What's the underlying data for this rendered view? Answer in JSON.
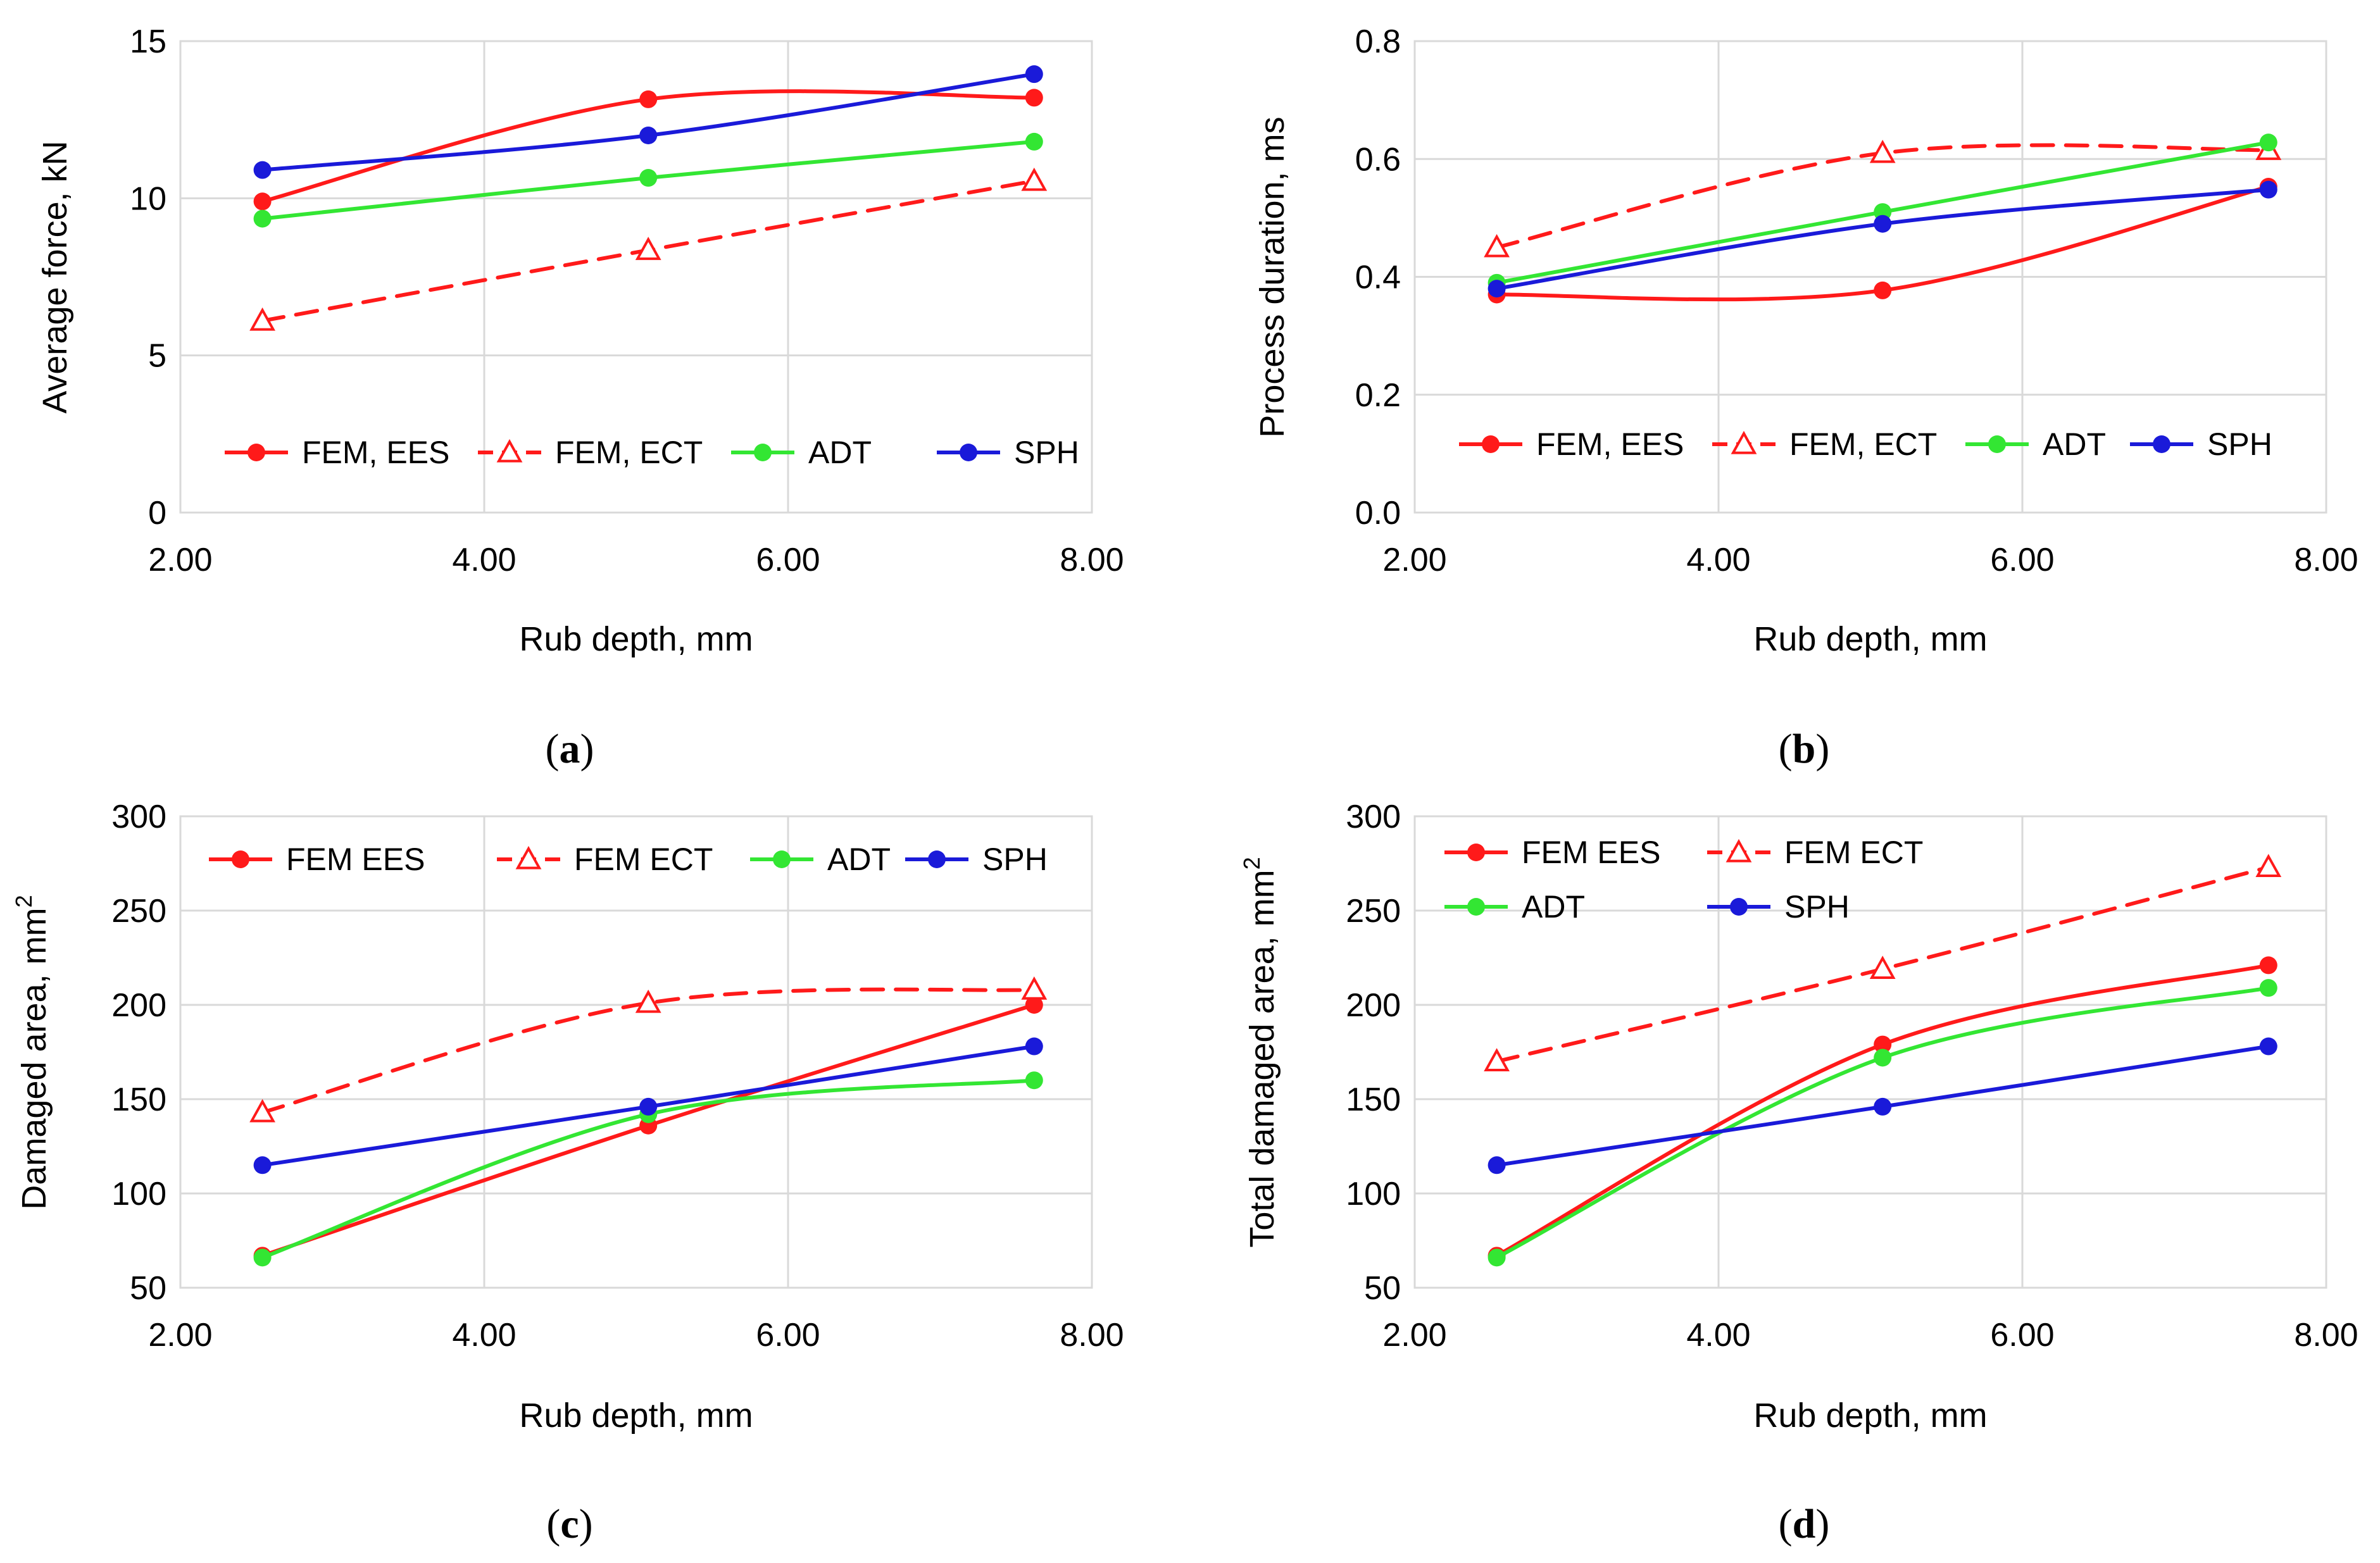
{
  "chart_data": [
    {
      "type": "line",
      "panel_label": "a",
      "xlabel": "Rub depth, mm",
      "ylabel": "Average force, kN",
      "xlim": [
        2.0,
        8.0
      ],
      "ylim": [
        0,
        15
      ],
      "x_ticks": [
        "2.00",
        "4.00",
        "6.00",
        "8.00"
      ],
      "y_ticks": [
        "0",
        "5",
        "10",
        "15"
      ],
      "grid": true,
      "legend_placement": "bottom",
      "x": [
        2.54,
        5.08,
        7.62
      ],
      "series": [
        {
          "name": "FEM, EES",
          "values": [
            9.9,
            13.15,
            13.2
          ],
          "color": "#ff1a1a",
          "marker": "circle",
          "dash": "solid"
        },
        {
          "name": "FEM, ECT",
          "values": [
            6.1,
            8.35,
            10.55
          ],
          "color": "#ff1a1a",
          "marker": "triangle",
          "dash": "dashed"
        },
        {
          "name": "ADT",
          "values": [
            9.35,
            10.65,
            11.8
          ],
          "color": "#33e633",
          "marker": "circle",
          "dash": "solid"
        },
        {
          "name": "SPH",
          "values": [
            10.9,
            12.0,
            13.95
          ],
          "color": "#1a1ad9",
          "marker": "circle",
          "dash": "solid"
        }
      ]
    },
    {
      "type": "line",
      "panel_label": "b",
      "xlabel": "Rub depth, mm",
      "ylabel": "Process duration, ms",
      "xlim": [
        2.0,
        8.0
      ],
      "ylim": [
        0,
        0.8
      ],
      "x_ticks": [
        "2.00",
        "4.00",
        "6.00",
        "8.00"
      ],
      "y_ticks": [
        "0.0",
        "0.2",
        "0.4",
        "0.6",
        "0.8"
      ],
      "grid": true,
      "legend_placement": "bottom",
      "x": [
        2.54,
        5.08,
        7.62
      ],
      "series": [
        {
          "name": "FEM, EES",
          "values": [
            0.37,
            0.377,
            0.553
          ],
          "color": "#ff1a1a",
          "marker": "circle",
          "dash": "solid"
        },
        {
          "name": "FEM, ECT",
          "values": [
            0.45,
            0.61,
            0.615
          ],
          "color": "#ff1a1a",
          "marker": "triangle",
          "dash": "dashed"
        },
        {
          "name": "ADT",
          "values": [
            0.39,
            0.51,
            0.628
          ],
          "color": "#33e633",
          "marker": "circle",
          "dash": "solid"
        },
        {
          "name": "SPH",
          "values": [
            0.38,
            0.49,
            0.548
          ],
          "color": "#1a1ad9",
          "marker": "circle",
          "dash": "solid"
        }
      ]
    },
    {
      "type": "line",
      "panel_label": "c",
      "xlabel": "Rub depth, mm",
      "ylabel": "Damaged area, mm",
      "ylabel_superscript": "2",
      "xlim": [
        2.0,
        8.0
      ],
      "ylim": [
        50,
        300
      ],
      "x_ticks": [
        "2.00",
        "4.00",
        "6.00",
        "8.00"
      ],
      "y_ticks": [
        "50",
        "100",
        "150",
        "200",
        "250",
        "300"
      ],
      "grid": true,
      "legend_placement": "top",
      "x": [
        2.54,
        5.08,
        7.62
      ],
      "series": [
        {
          "name": "FEM EES",
          "values": [
            67,
            136,
            200
          ],
          "color": "#ff1a1a",
          "marker": "circle",
          "dash": "solid"
        },
        {
          "name": "FEM ECT",
          "values": [
            143,
            201,
            208
          ],
          "color": "#ff1a1a",
          "marker": "triangle",
          "dash": "dashed"
        },
        {
          "name": "ADT",
          "values": [
            66,
            142,
            160
          ],
          "color": "#33e633",
          "marker": "circle",
          "dash": "solid"
        },
        {
          "name": "SPH",
          "values": [
            115,
            146,
            178
          ],
          "color": "#1a1ad9",
          "marker": "circle",
          "dash": "solid"
        }
      ]
    },
    {
      "type": "line",
      "panel_label": "d",
      "xlabel": "Rub depth, mm",
      "ylabel": "Total damaged area, mm",
      "ylabel_superscript": "2",
      "xlim": [
        2.0,
        8.0
      ],
      "ylim": [
        50,
        300
      ],
      "x_ticks": [
        "2.00",
        "4.00",
        "6.00",
        "8.00"
      ],
      "y_ticks": [
        "50",
        "100",
        "150",
        "200",
        "250",
        "300"
      ],
      "grid": true,
      "legend_placement": "top-left",
      "x": [
        2.54,
        5.08,
        7.62
      ],
      "series": [
        {
          "name": "FEM EES",
          "values": [
            67,
            179,
            221
          ],
          "color": "#ff1a1a",
          "marker": "circle",
          "dash": "solid"
        },
        {
          "name": "FEM ECT",
          "values": [
            170,
            219,
            273
          ],
          "color": "#ff1a1a",
          "marker": "triangle",
          "dash": "dashed"
        },
        {
          "name": "ADT",
          "values": [
            66,
            172,
            209
          ],
          "color": "#33e633",
          "marker": "circle",
          "dash": "solid"
        },
        {
          "name": "SPH",
          "values": [
            115,
            146,
            178
          ],
          "color": "#1a1ad9",
          "marker": "circle",
          "dash": "solid"
        }
      ]
    }
  ]
}
